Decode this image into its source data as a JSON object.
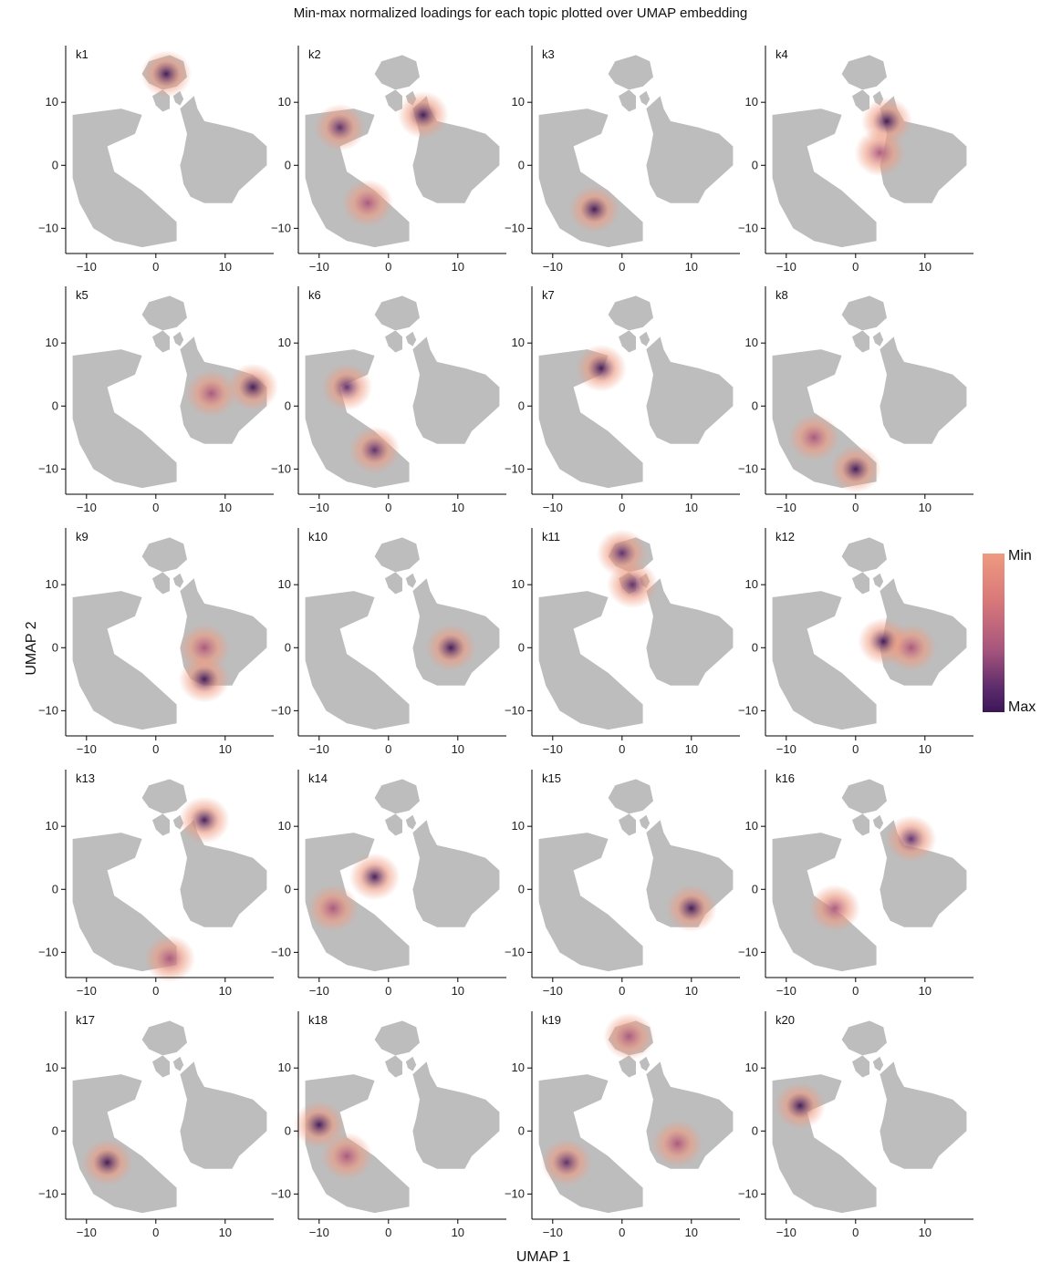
{
  "title": "Min-max normalized loadings for each topic plotted over UMAP embedding",
  "legend": {
    "min_label": "Min",
    "max_label": "Max",
    "colors": [
      "#ee9a80",
      "#d8787a",
      "#a8567d",
      "#5b2b6b",
      "#3c1658"
    ],
    "na_color": "#bdbdbd"
  },
  "chart_data": {
    "type": "scatter",
    "xlabel": "UMAP 1",
    "ylabel": "UMAP 2",
    "xlim": [
      -13,
      17
    ],
    "ylim": [
      -14,
      19
    ],
    "xticks": [
      -10,
      0,
      10
    ],
    "yticks": [
      -10,
      0,
      10
    ],
    "xtick_labels": [
      "−10",
      "0",
      "10"
    ],
    "ytick_labels": [
      "−10",
      "0",
      "10"
    ],
    "panels": [
      {
        "label": "k1",
        "hot": [
          [
            1.5,
            14.5,
            0.9
          ]
        ]
      },
      {
        "label": "k2",
        "hot": [
          [
            -7,
            6,
            0.8
          ],
          [
            5,
            8,
            0.9
          ],
          [
            -3,
            -6,
            0.5
          ]
        ]
      },
      {
        "label": "k3",
        "hot": [
          [
            -4,
            -7,
            0.9
          ]
        ]
      },
      {
        "label": "k4",
        "hot": [
          [
            4.5,
            7,
            0.9
          ],
          [
            3.5,
            2,
            0.6
          ]
        ]
      },
      {
        "label": "k5",
        "hot": [
          [
            14,
            3,
            1.0
          ],
          [
            8,
            2,
            0.4
          ]
        ]
      },
      {
        "label": "k6",
        "hot": [
          [
            -6,
            3,
            0.8
          ],
          [
            -2,
            -7,
            0.7
          ]
        ]
      },
      {
        "label": "k7",
        "hot": [
          [
            -3,
            6,
            1.0
          ]
        ]
      },
      {
        "label": "k8",
        "hot": [
          [
            0,
            -10,
            1.0
          ],
          [
            -6,
            -5,
            0.4
          ]
        ]
      },
      {
        "label": "k9",
        "hot": [
          [
            7,
            -5,
            1.0
          ],
          [
            7,
            0,
            0.5
          ]
        ]
      },
      {
        "label": "k10",
        "hot": [
          [
            9,
            0,
            0.9
          ]
        ]
      },
      {
        "label": "k11",
        "hot": [
          [
            0,
            15,
            0.8
          ],
          [
            1.5,
            10,
            0.7
          ]
        ]
      },
      {
        "label": "k12",
        "hot": [
          [
            4,
            1,
            1.0
          ],
          [
            8,
            0,
            0.4
          ]
        ]
      },
      {
        "label": "k13",
        "hot": [
          [
            7,
            11,
            1.0
          ],
          [
            2,
            -11,
            0.4
          ]
        ]
      },
      {
        "label": "k14",
        "hot": [
          [
            -2,
            2,
            1.0
          ],
          [
            -8,
            -3,
            0.6
          ]
        ]
      },
      {
        "label": "k15",
        "hot": [
          [
            10,
            -3,
            0.9
          ]
        ]
      },
      {
        "label": "k16",
        "hot": [
          [
            8,
            8,
            0.7
          ],
          [
            -3,
            -3,
            0.6
          ]
        ]
      },
      {
        "label": "k17",
        "hot": [
          [
            -7,
            -5,
            0.9
          ]
        ]
      },
      {
        "label": "k18",
        "hot": [
          [
            -10,
            1,
            0.9
          ],
          [
            -6,
            -4,
            0.4
          ]
        ]
      },
      {
        "label": "k19",
        "hot": [
          [
            -8,
            -5,
            0.7
          ],
          [
            1,
            15,
            0.6
          ],
          [
            8,
            -2,
            0.4
          ]
        ]
      },
      {
        "label": "k20",
        "hot": [
          [
            -8,
            4,
            1.0
          ]
        ]
      }
    ]
  }
}
